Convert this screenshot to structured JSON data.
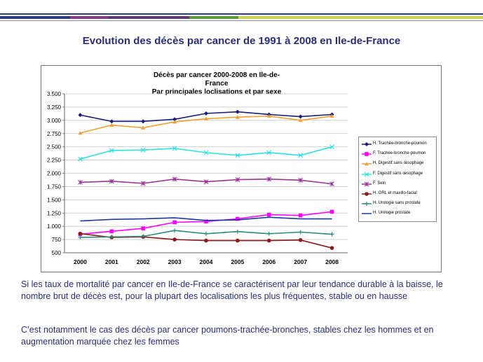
{
  "slide": {
    "title": "Evolution des décès par cancer de 1991 à 2008 en Ile-de-France",
    "paragraph1": "Si les taux de mortalité par cancer en Ile-de-France se caractérisent par leur tendance durable à la baisse, le nombre brut de décès est, pour la plupart des localisations les plus fréquentes, stable ou en hausse",
    "paragraph2": "C’est notamment le cas des décès par cancer poumons-trachée-bronches, stables chez les hommes et en augmentation marquée chez les femmes"
  },
  "chart_data": {
    "type": "line",
    "title": "Décès par cancer 2000-2008 en Ile-de-France",
    "subtitle": "Par principales loclisations et par sexe",
    "xlabel": "",
    "ylabel": "",
    "ylim": [
      500,
      3500
    ],
    "yticks": [
      "500",
      "750",
      "1.000",
      "1.250",
      "1.500",
      "1.750",
      "2.000",
      "2.250",
      "2.500",
      "2.750",
      "3.000",
      "3.250",
      "3.500"
    ],
    "categories": [
      "2000",
      "2001",
      "2002",
      "2003",
      "2004",
      "2005",
      "2006",
      "2007",
      "2008"
    ],
    "legend_position": "right",
    "grid": "horizontal",
    "series": [
      {
        "name": "H. Trachée-bronche-poumon",
        "color": "#1a1a7a",
        "marker": "diamond",
        "values": [
          3100,
          2980,
          2980,
          3020,
          3130,
          3160,
          3110,
          3070,
          3110
        ]
      },
      {
        "name": "F. Trachée-bronche-poumon",
        "color": "#ff00ff",
        "marker": "square",
        "values": [
          850,
          905,
          960,
          1075,
          1090,
          1140,
          1220,
          1205,
          1275
        ]
      },
      {
        "name": "H. Digestif sans œsophage",
        "color": "#f0a030",
        "marker": "triangle",
        "values": [
          2760,
          2910,
          2860,
          2970,
          3030,
          3060,
          3080,
          3000,
          3080
        ]
      },
      {
        "name": "F. Digestif sans œsophage",
        "color": "#30e0e0",
        "marker": "x",
        "values": [
          2270,
          2430,
          2440,
          2470,
          2390,
          2340,
          2390,
          2340,
          2500
        ]
      },
      {
        "name": "F. Sein",
        "color": "#993399",
        "marker": "star",
        "values": [
          1830,
          1850,
          1810,
          1890,
          1840,
          1880,
          1890,
          1870,
          1800
        ]
      },
      {
        "name": "H. ORL et maxillo-facial",
        "color": "#8b1a1a",
        "marker": "circle",
        "values": [
          860,
          790,
          800,
          750,
          730,
          730,
          730,
          740,
          590
        ]
      },
      {
        "name": "H. Urologie sans prostate",
        "color": "#2e8b7a",
        "marker": "plus",
        "values": [
          790,
          800,
          810,
          920,
          860,
          900,
          860,
          890,
          850
        ]
      },
      {
        "name": "H. Urologie prostate",
        "color": "#1a3aa0",
        "marker": "none",
        "values": [
          1100,
          1130,
          1140,
          1160,
          1110,
          1120,
          1170,
          1140,
          1140
        ]
      }
    ]
  }
}
